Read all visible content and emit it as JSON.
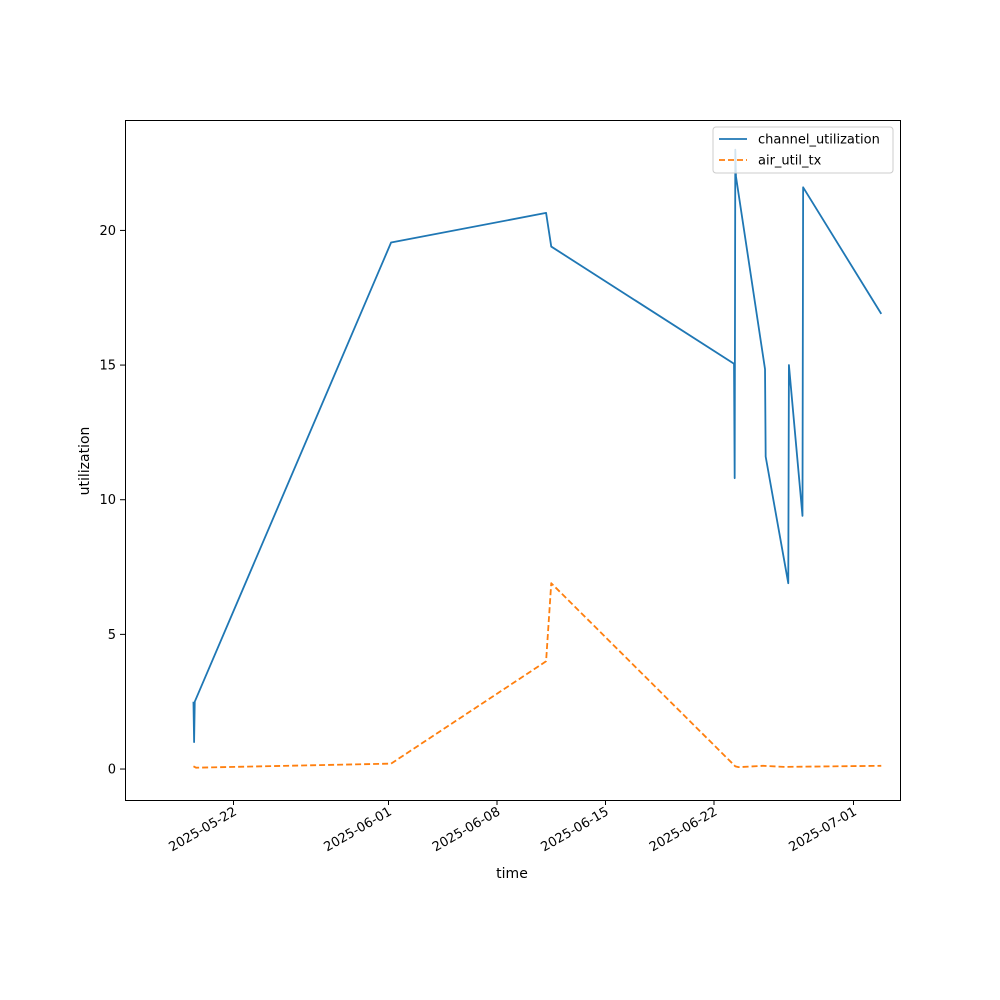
{
  "chart_data": {
    "type": "line",
    "title": "",
    "xlabel": "time",
    "ylabel": "utilization",
    "x_axis": "date",
    "xlim": [
      "2025-05-15",
      "2025-07-04"
    ],
    "ylim": [
      -1.15,
      24.1
    ],
    "x_ticks": [
      "2025-05-22",
      "2025-06-01",
      "2025-06-08",
      "2025-06-15",
      "2025-06-22",
      "2025-07-01"
    ],
    "y_ticks": [
      0,
      5,
      10,
      15,
      20
    ],
    "grid": false,
    "legend_position": "top-right",
    "series": [
      {
        "name": "channel_utilization",
        "color": "#1f77b4",
        "style": "solid",
        "points": [
          [
            "2025-05-19 10:00",
            2.5
          ],
          [
            "2025-05-19 11:00",
            1.0
          ],
          [
            "2025-05-19 12:00",
            2.5
          ],
          [
            "2025-06-01 04:00",
            19.55
          ],
          [
            "2025-06-11 04:00",
            20.65
          ],
          [
            "2025-06-11 12:00",
            19.4
          ],
          [
            "2025-06-23 07:00",
            15.05
          ],
          [
            "2025-06-23 08:00",
            10.8
          ],
          [
            "2025-06-23 09:00",
            23.0
          ],
          [
            "2025-06-23 10:00",
            22.0
          ],
          [
            "2025-06-25 07:00",
            14.85
          ],
          [
            "2025-06-25 08:00",
            11.6
          ],
          [
            "2025-06-26 19:00",
            6.9
          ],
          [
            "2025-06-26 20:00",
            15.0
          ],
          [
            "2025-06-27 17:00",
            9.4
          ],
          [
            "2025-06-27 18:00",
            21.6
          ],
          [
            "2025-07-02 19:00",
            16.9
          ]
        ]
      },
      {
        "name": "air_util_tx",
        "color": "#ff7f0e",
        "style": "dashed",
        "points": [
          [
            "2025-05-19 10:00",
            0.1
          ],
          [
            "2025-05-19 14:00",
            0.05
          ],
          [
            "2025-06-01 04:00",
            0.2
          ],
          [
            "2025-06-11 04:00",
            4.0
          ],
          [
            "2025-06-11 12:00",
            6.9
          ],
          [
            "2025-06-23 09:00",
            0.1
          ],
          [
            "2025-06-23 14:00",
            0.07
          ],
          [
            "2025-06-25 04:00",
            0.12
          ],
          [
            "2025-06-26 12:00",
            0.08
          ],
          [
            "2025-07-02 19:00",
            0.12
          ]
        ]
      }
    ]
  }
}
